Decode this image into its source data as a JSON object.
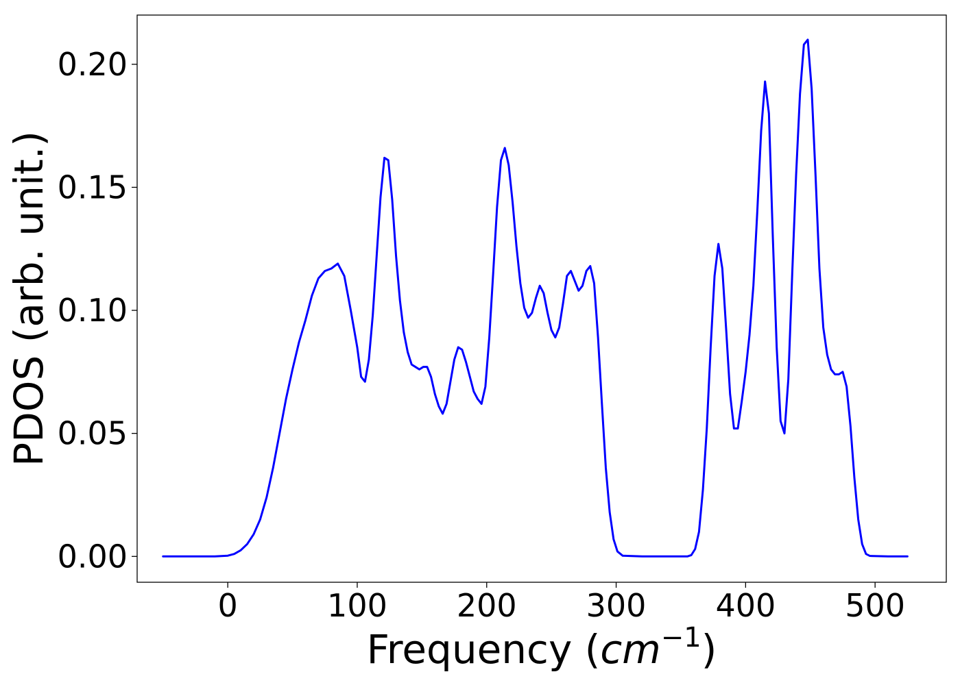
{
  "chart_data": {
    "type": "line",
    "xlabel": "Frequency",
    "xlabel_unit_base": "cm",
    "xlabel_unit_exp": "−1",
    "ylabel": "PDOS (arb. unit.)",
    "xlim": [
      -70,
      555
    ],
    "ylim": [
      -0.0105,
      0.22
    ],
    "xticks": [
      0,
      100,
      200,
      300,
      400,
      500
    ],
    "yticks": [
      0.0,
      0.05,
      0.1,
      0.15,
      0.2
    ],
    "xtick_labels": [
      "0",
      "100",
      "200",
      "300",
      "400",
      "500"
    ],
    "ytick_labels": [
      "0.00",
      "0.05",
      "0.10",
      "0.15",
      "0.20"
    ],
    "grid": false,
    "legend": "none",
    "series": [
      {
        "color": "#0000ff",
        "x": [
          -50,
          -30,
          -10,
          0,
          5,
          10,
          15,
          20,
          25,
          30,
          35,
          40,
          45,
          50,
          55,
          60,
          65,
          70,
          75,
          80,
          85,
          90,
          95,
          100,
          103,
          106,
          109,
          112,
          115,
          118,
          121,
          124,
          127,
          130,
          133,
          136,
          139,
          142,
          145,
          148,
          151,
          154,
          157,
          160,
          163,
          166,
          169,
          172,
          175,
          178,
          181,
          184,
          187,
          190,
          193,
          196,
          199,
          202,
          205,
          208,
          211,
          214,
          217,
          220,
          223,
          226,
          229,
          232,
          235,
          238,
          241,
          244,
          247,
          250,
          253,
          256,
          259,
          262,
          265,
          268,
          271,
          274,
          277,
          280,
          283,
          286,
          289,
          292,
          295,
          298,
          301,
          305,
          320,
          340,
          355,
          358,
          361,
          364,
          367,
          370,
          373,
          376,
          379,
          382,
          385,
          388,
          391,
          394,
          397,
          400,
          403,
          406,
          409,
          412,
          415,
          418,
          421,
          424,
          427,
          430,
          433,
          436,
          439,
          442,
          445,
          448,
          451,
          454,
          457,
          460,
          463,
          466,
          469,
          472,
          475,
          478,
          481,
          484,
          487,
          490,
          493,
          496,
          510,
          525
        ],
        "y": [
          0.0,
          0.0,
          0.0,
          0.0003,
          0.001,
          0.0025,
          0.005,
          0.009,
          0.015,
          0.024,
          0.036,
          0.05,
          0.064,
          0.076,
          0.087,
          0.096,
          0.106,
          0.113,
          0.116,
          0.117,
          0.119,
          0.114,
          0.1,
          0.085,
          0.073,
          0.071,
          0.08,
          0.098,
          0.122,
          0.146,
          0.162,
          0.161,
          0.145,
          0.122,
          0.104,
          0.091,
          0.083,
          0.078,
          0.077,
          0.076,
          0.077,
          0.077,
          0.073,
          0.066,
          0.061,
          0.058,
          0.062,
          0.071,
          0.08,
          0.085,
          0.084,
          0.079,
          0.073,
          0.067,
          0.064,
          0.062,
          0.069,
          0.089,
          0.115,
          0.142,
          0.161,
          0.166,
          0.159,
          0.144,
          0.126,
          0.111,
          0.101,
          0.097,
          0.099,
          0.105,
          0.11,
          0.107,
          0.099,
          0.092,
          0.089,
          0.093,
          0.103,
          0.114,
          0.116,
          0.112,
          0.108,
          0.11,
          0.116,
          0.118,
          0.111,
          0.089,
          0.062,
          0.036,
          0.018,
          0.007,
          0.002,
          0.0003,
          0.0,
          0.0,
          0.0,
          0.0005,
          0.003,
          0.01,
          0.027,
          0.052,
          0.085,
          0.114,
          0.127,
          0.117,
          0.092,
          0.066,
          0.052,
          0.052,
          0.063,
          0.075,
          0.09,
          0.11,
          0.14,
          0.173,
          0.193,
          0.18,
          0.13,
          0.085,
          0.055,
          0.05,
          0.072,
          0.115,
          0.155,
          0.188,
          0.208,
          0.21,
          0.19,
          0.155,
          0.117,
          0.093,
          0.082,
          0.076,
          0.074,
          0.074,
          0.075,
          0.069,
          0.053,
          0.032,
          0.015,
          0.005,
          0.001,
          0.0002,
          0.0,
          0.0
        ]
      }
    ]
  }
}
